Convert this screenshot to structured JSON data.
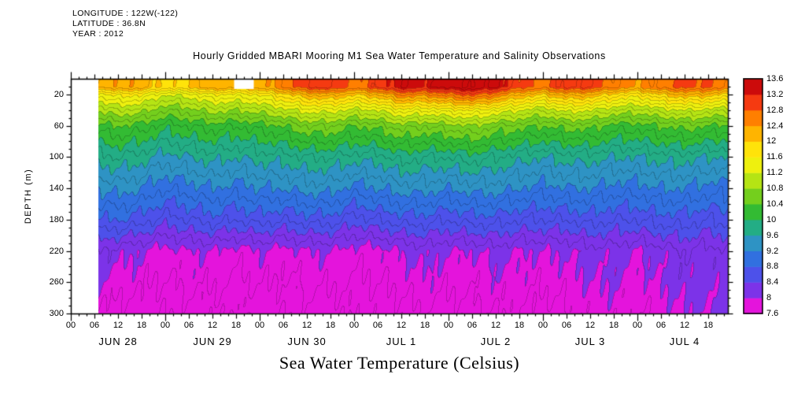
{
  "header": {
    "longitude": "LONGITUDE : 122W(-122)",
    "latitude": "LATITUDE : 36.8N",
    "year": "YEAR : 2012"
  },
  "title": "Hourly Gridded MBARI Mooring M1 Sea Water Temperature and Salinity Observations",
  "footer_label": "Sea Water Temperature (Celsius)",
  "chart_data": {
    "type": "heatmap",
    "title": "Hourly Gridded MBARI Mooring M1 Sea Water Temperature and Salinity Observations",
    "xlabel": "Sea Water Temperature (Celsius)",
    "ylabel": "DEPTH (m)",
    "x_range": [
      0,
      167
    ],
    "y_range": [
      0,
      300
    ],
    "grid": false,
    "legend_position": "right-colorbar",
    "x_tick_hours": [
      0,
      6,
      12,
      18,
      24,
      30,
      36,
      42,
      48,
      54,
      60,
      66,
      72,
      78,
      84,
      90,
      96,
      102,
      108,
      114,
      120,
      126,
      132,
      138,
      144,
      150,
      156,
      162
    ],
    "x_tick_labels": [
      "00",
      "06",
      "12",
      "18",
      "00",
      "06",
      "12",
      "18",
      "00",
      "06",
      "12",
      "18",
      "00",
      "06",
      "12",
      "18",
      "00",
      "06",
      "12",
      "18",
      "00",
      "06",
      "12",
      "18",
      "00",
      "06",
      "12",
      "18"
    ],
    "x_day_labels": [
      {
        "label": "JUN 28",
        "hour": 12
      },
      {
        "label": "JUN 29",
        "hour": 36
      },
      {
        "label": "JUN 30",
        "hour": 60
      },
      {
        "label": "JUL 1",
        "hour": 84
      },
      {
        "label": "JUL 2",
        "hour": 108
      },
      {
        "label": "JUL 3",
        "hour": 132
      },
      {
        "label": "JUL 4",
        "hour": 156
      }
    ],
    "y_tick_values": [
      20,
      60,
      100,
      140,
      180,
      220,
      260,
      300
    ],
    "y_tick_labels": [
      "20",
      "60",
      "100",
      "140",
      "180",
      "220",
      "260",
      "300"
    ],
    "colorbar": {
      "vmin": 7.6,
      "vmax": 13.6,
      "step": 0.4,
      "values": [
        13.6,
        13.2,
        12.8,
        12.4,
        12,
        11.6,
        11.2,
        10.8,
        10.4,
        10,
        9.6,
        9.2,
        8.8,
        8.4,
        8,
        7.6
      ],
      "labels": [
        "13.6",
        "13.2",
        "12.8",
        "12.4",
        "12",
        "11.6",
        "11.2",
        "10.8",
        "10.4",
        "10",
        "9.6",
        "9.2",
        "8.8",
        "8.4",
        "8",
        "7.6"
      ],
      "palette": [
        "#e414dc",
        "#7c33e8",
        "#4d51ea",
        "#3170e0",
        "#2e93c4",
        "#23ad85",
        "#33bb33",
        "#74cf1d",
        "#b5e414",
        "#eef00e",
        "#ffe30a",
        "#ffb400",
        "#ff7f00",
        "#f53a11",
        "#cc0b0b"
      ]
    },
    "x_hours": [
      0,
      6,
      12,
      18,
      24,
      30,
      36,
      42,
      48,
      54,
      60,
      66,
      72,
      78,
      84,
      90,
      96,
      102,
      108,
      114,
      120,
      126,
      132,
      138,
      144,
      150,
      156,
      162,
      168
    ],
    "y_depths": [
      10,
      20,
      40,
      60,
      100,
      140,
      180,
      220,
      300
    ],
    "z_temperature_by_depth": [
      [
        12.0,
        12.1,
        12.4,
        12.3,
        11.9,
        12.0,
        12.4,
        12.2,
        12.3,
        12.6,
        13.0,
        13.1,
        12.7,
        13.0,
        13.4,
        13.3,
        13.5,
        13.6,
        13.4,
        12.9,
        12.7,
        13.1,
        13.0,
        12.6,
        12.4,
        12.7,
        12.9,
        12.8,
        12.6
      ],
      [
        11.3,
        11.4,
        11.7,
        11.6,
        11.2,
        11.3,
        11.6,
        11.5,
        11.6,
        11.9,
        12.2,
        12.3,
        12.0,
        12.2,
        12.6,
        12.5,
        12.7,
        12.9,
        12.6,
        12.2,
        12.0,
        12.3,
        12.2,
        11.9,
        11.7,
        12.0,
        12.2,
        12.1,
        11.9
      ],
      [
        10.7,
        10.8,
        11.0,
        10.9,
        10.6,
        10.7,
        10.9,
        10.8,
        10.9,
        11.1,
        11.3,
        11.3,
        11.1,
        11.2,
        11.5,
        11.4,
        11.5,
        11.6,
        11.4,
        11.2,
        11.0,
        11.3,
        11.2,
        11.0,
        10.9,
        11.1,
        11.2,
        11.1,
        11.0
      ],
      [
        10.2,
        10.3,
        10.4,
        10.3,
        10.1,
        10.2,
        10.3,
        10.2,
        10.3,
        10.4,
        10.6,
        10.6,
        10.4,
        10.5,
        10.7,
        10.6,
        10.7,
        10.8,
        10.6,
        10.5,
        10.4,
        10.5,
        10.5,
        10.3,
        10.3,
        10.4,
        10.5,
        10.4,
        10.3
      ],
      [
        9.6,
        9.7,
        9.8,
        9.7,
        9.5,
        9.6,
        9.7,
        9.6,
        9.7,
        9.7,
        9.8,
        9.8,
        9.7,
        9.7,
        9.9,
        9.8,
        9.8,
        9.9,
        9.8,
        9.7,
        9.6,
        9.7,
        9.7,
        9.6,
        9.6,
        9.7,
        9.7,
        9.6,
        9.6
      ],
      [
        9.1,
        9.2,
        9.3,
        9.2,
        9.0,
        9.1,
        9.2,
        9.1,
        9.2,
        9.2,
        9.3,
        9.3,
        9.1,
        9.2,
        9.3,
        9.3,
        9.2,
        9.3,
        9.3,
        9.2,
        9.1,
        9.2,
        9.2,
        9.1,
        9.1,
        9.2,
        9.2,
        9.1,
        9.1
      ],
      [
        8.7,
        8.8,
        8.8,
        8.7,
        8.5,
        8.6,
        8.7,
        8.6,
        8.7,
        8.6,
        8.7,
        8.7,
        8.5,
        8.6,
        8.7,
        8.7,
        8.6,
        8.7,
        8.7,
        8.6,
        8.6,
        8.6,
        8.7,
        8.6,
        8.6,
        8.7,
        8.7,
        8.6,
        8.7
      ],
      [
        8.1,
        8.2,
        8.1,
        8.0,
        7.9,
        8.0,
        8.0,
        7.9,
        8.0,
        7.9,
        8.0,
        8.0,
        7.9,
        7.9,
        8.0,
        8.1,
        8.0,
        8.0,
        8.1,
        8.0,
        8.0,
        8.0,
        8.1,
        8.1,
        8.0,
        8.1,
        8.2,
        8.1,
        8.2
      ],
      [
        7.8,
        7.8,
        7.7,
        7.7,
        7.6,
        7.7,
        7.7,
        7.6,
        7.7,
        7.6,
        7.7,
        7.7,
        7.6,
        7.7,
        7.7,
        7.8,
        7.7,
        7.7,
        7.8,
        7.8,
        7.7,
        7.8,
        7.9,
        7.9,
        7.8,
        7.9,
        8.0,
        8.0,
        8.1
      ]
    ],
    "missing_regions": [
      {
        "t0": 0,
        "t1": 7,
        "d0": 0,
        "d1": 300
      },
      {
        "t0": 41.5,
        "t1": 46.5,
        "d0": 0,
        "d1": 13
      }
    ]
  }
}
